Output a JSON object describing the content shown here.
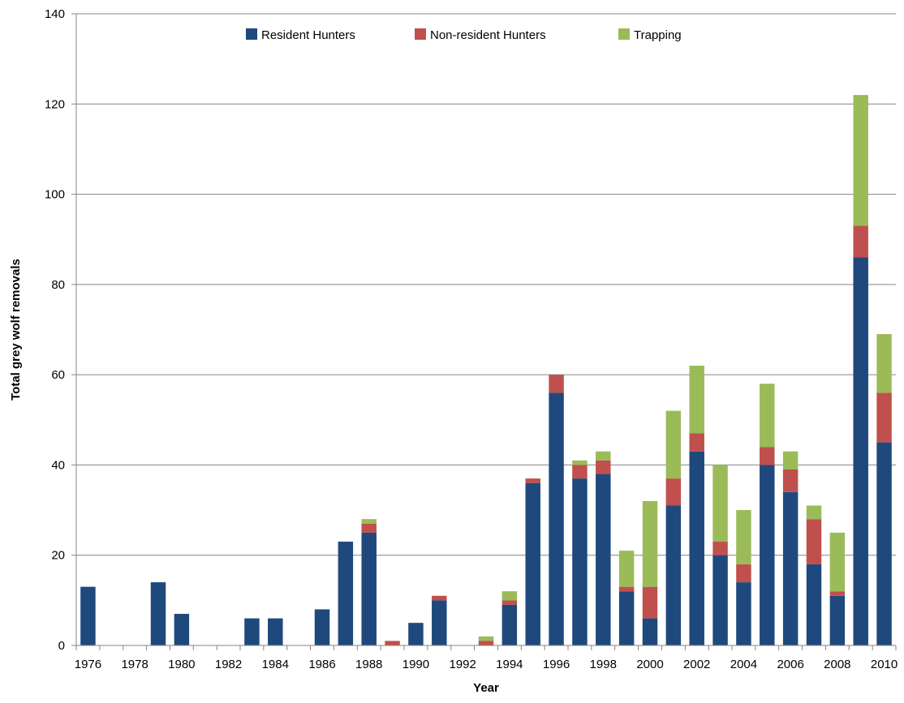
{
  "chart_data": {
    "type": "bar",
    "stacked": true,
    "xlabel": "Year",
    "ylabel": "Total grey wolf removals",
    "ylim": [
      0,
      140
    ],
    "yticks": [
      0,
      20,
      40,
      60,
      80,
      100,
      120,
      140
    ],
    "grid": true,
    "legend_position": "top-center",
    "categories": [
      1976,
      1977,
      1978,
      1979,
      1980,
      1981,
      1982,
      1983,
      1984,
      1985,
      1986,
      1987,
      1988,
      1989,
      1990,
      1991,
      1992,
      1993,
      1994,
      1995,
      1996,
      1997,
      1998,
      1999,
      2000,
      2001,
      2002,
      2003,
      2004,
      2005,
      2006,
      2007,
      2008,
      2009,
      2010
    ],
    "xtick_labels": [
      1976,
      1978,
      1980,
      1982,
      1984,
      1986,
      1988,
      1990,
      1992,
      1994,
      1996,
      1998,
      2000,
      2002,
      2004,
      2006,
      2008,
      2010
    ],
    "series": [
      {
        "name": "Resident Hunters",
        "color": "#1F497D",
        "values": [
          13,
          0,
          0,
          14,
          7,
          0,
          0,
          6,
          6,
          0,
          8,
          23,
          25,
          0,
          5,
          10,
          0,
          0,
          9,
          36,
          56,
          37,
          38,
          12,
          6,
          31,
          43,
          20,
          14,
          40,
          34,
          18,
          11,
          86,
          45
        ]
      },
      {
        "name": "Non-resident Hunters",
        "color": "#C0504D",
        "values": [
          0,
          0,
          0,
          0,
          0,
          0,
          0,
          0,
          0,
          0,
          0,
          0,
          2,
          1,
          0,
          1,
          0,
          1,
          1,
          1,
          4,
          3,
          3,
          1,
          7,
          6,
          4,
          3,
          4,
          4,
          5,
          10,
          1,
          7,
          11
        ]
      },
      {
        "name": "Trapping",
        "color": "#9BBB59",
        "values": [
          0,
          0,
          0,
          0,
          0,
          0,
          0,
          0,
          0,
          0,
          0,
          0,
          1,
          0,
          0,
          0,
          0,
          1,
          2,
          0,
          0,
          1,
          2,
          8,
          19,
          15,
          15,
          17,
          12,
          14,
          4,
          3,
          13,
          29,
          13
        ]
      }
    ]
  }
}
